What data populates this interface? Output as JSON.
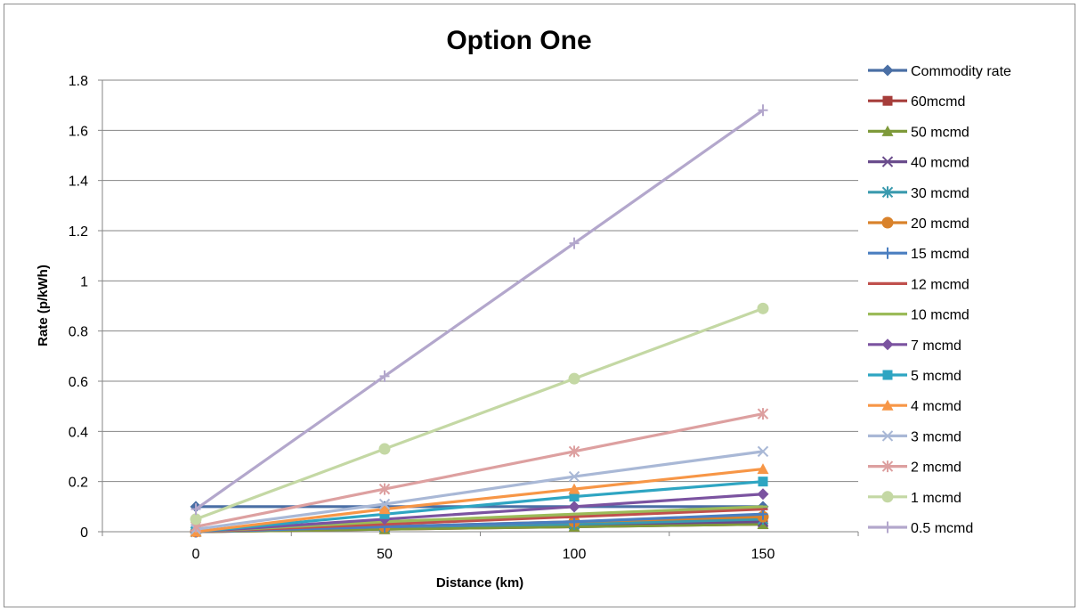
{
  "chart_data": {
    "type": "line",
    "title": "Option One",
    "xlabel": "Distance (km)",
    "ylabel": "Rate (p/kWh)",
    "x": [
      0,
      50,
      100,
      150
    ],
    "x_tick_labels": [
      "0",
      "50",
      "100",
      "150"
    ],
    "ylim": [
      0,
      1.8
    ],
    "y_tick_labels": [
      "0",
      "0.2",
      "0.4",
      "0.6",
      "0.8",
      "1",
      "1.2",
      "1.4",
      "1.6",
      "1.8"
    ],
    "grid": "horizontal",
    "legend_position": "right",
    "series": [
      {
        "name": "Commodity rate",
        "color": "#4A6FA5",
        "marker": "diamond",
        "values": [
          0.1,
          0.1,
          0.1,
          0.1
        ]
      },
      {
        "name": "60mcmd",
        "color": "#A63D3A",
        "marker": "square",
        "values": [
          0.0,
          0.01,
          0.02,
          0.03
        ]
      },
      {
        "name": "50 mcmd",
        "color": "#7E9A3A",
        "marker": "triangle",
        "values": [
          0.0,
          0.01,
          0.02,
          0.03
        ]
      },
      {
        "name": "40 mcmd",
        "color": "#6A4C8C",
        "marker": "x",
        "values": [
          0.0,
          0.02,
          0.03,
          0.04
        ]
      },
      {
        "name": "30 mcmd",
        "color": "#3A9AAE",
        "marker": "star",
        "values": [
          0.0,
          0.02,
          0.03,
          0.05
        ]
      },
      {
        "name": "20 mcmd",
        "color": "#D9822B",
        "marker": "circle",
        "values": [
          0.0,
          0.02,
          0.04,
          0.06
        ]
      },
      {
        "name": "15 mcmd",
        "color": "#4A7EC0",
        "marker": "plus",
        "values": [
          0.0,
          0.02,
          0.04,
          0.07
        ]
      },
      {
        "name": "12 mcmd",
        "color": "#C0504D",
        "marker": "dash",
        "values": [
          0.0,
          0.03,
          0.06,
          0.09
        ]
      },
      {
        "name": "10 mcmd",
        "color": "#9BBB59",
        "marker": "dash",
        "values": [
          0.0,
          0.04,
          0.07,
          0.1
        ]
      },
      {
        "name": "7 mcmd",
        "color": "#7B53A0",
        "marker": "diamond",
        "values": [
          0.0,
          0.05,
          0.1,
          0.15
        ]
      },
      {
        "name": "5 mcmd",
        "color": "#2EA5C2",
        "marker": "square",
        "values": [
          0.0,
          0.07,
          0.14,
          0.2
        ]
      },
      {
        "name": "4 mcmd",
        "color": "#F79646",
        "marker": "triangle",
        "values": [
          0.0,
          0.09,
          0.17,
          0.25
        ]
      },
      {
        "name": "3 mcmd",
        "color": "#A9B8D6",
        "marker": "x",
        "values": [
          0.01,
          0.11,
          0.22,
          0.32
        ]
      },
      {
        "name": "2 mcmd",
        "color": "#DDA0A0",
        "marker": "star",
        "values": [
          0.02,
          0.17,
          0.32,
          0.47
        ]
      },
      {
        "name": "1 mcmd",
        "color": "#C4D8A4",
        "marker": "circle",
        "values": [
          0.05,
          0.33,
          0.61,
          0.89
        ]
      },
      {
        "name": "0.5 mcmd",
        "color": "#B3A7CC",
        "marker": "plus",
        "values": [
          0.09,
          0.62,
          1.15,
          1.68
        ]
      }
    ]
  }
}
